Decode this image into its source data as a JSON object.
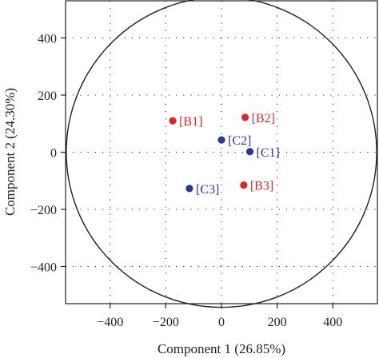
{
  "chart_data": {
    "type": "scatter",
    "title": "",
    "xlabel": "Component 1 (26.85%)",
    "ylabel": "Component 2 (24.30%)",
    "xlim": [
      -560,
      560
    ],
    "ylim": [
      -530,
      530
    ],
    "xticks": [
      -400,
      -200,
      0,
      200,
      400
    ],
    "yticks": [
      -400,
      -200,
      0,
      200,
      400
    ],
    "xtick_labels": [
      "−400",
      "−200",
      "0",
      "200",
      "400"
    ],
    "ytick_labels": [
      "−400",
      "−200",
      "0",
      "200",
      "400"
    ],
    "grid": true,
    "circle": {
      "center": [
        0,
        0
      ],
      "radius": 550
    },
    "colors": {
      "B": "#d62a2a",
      "C": "#2b3a8f"
    },
    "points": [
      {
        "label": "[B1]",
        "x": -175,
        "y": 110,
        "group": "B",
        "label_side": "right"
      },
      {
        "label": "[B2]",
        "x": 85,
        "y": 122,
        "group": "B",
        "label_side": "right"
      },
      {
        "label": "[B3]",
        "x": 80,
        "y": -115,
        "group": "B",
        "label_side": "right"
      },
      {
        "label": "[C1]",
        "x": 102,
        "y": 2,
        "group": "C",
        "label_side": "right"
      },
      {
        "label": "[C2]",
        "x": 0,
        "y": 43,
        "group": "C",
        "label_side": "right"
      },
      {
        "label": "[C3]",
        "x": -115,
        "y": -127,
        "group": "C",
        "label_side": "right"
      }
    ]
  }
}
